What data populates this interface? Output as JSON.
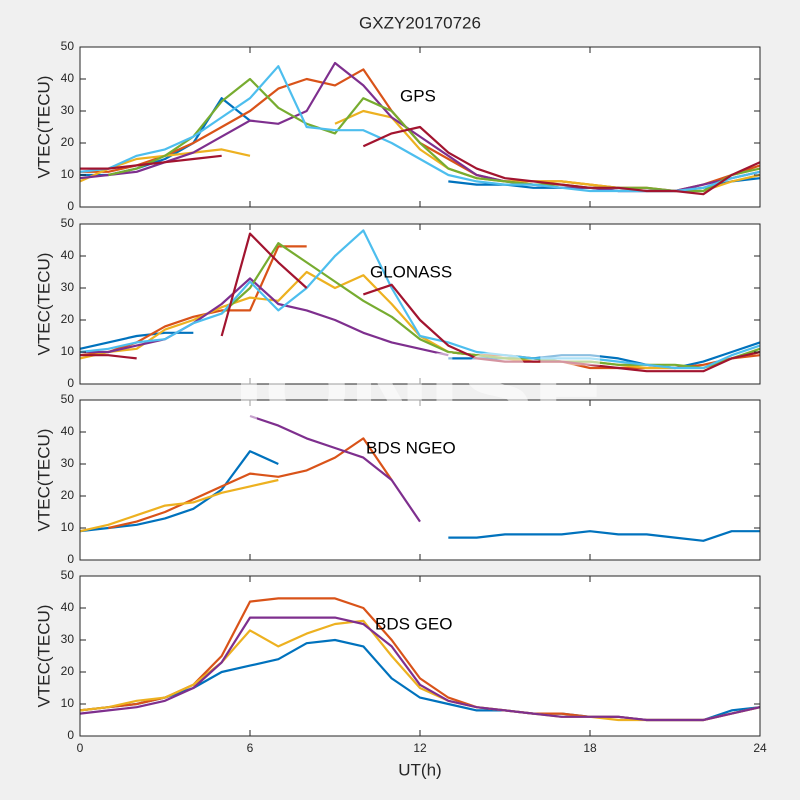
{
  "watermark": "IONISE",
  "chart_data": [
    {
      "type": "line",
      "title": "GXZY20170726",
      "annotation": "GPS",
      "ylabel": "VTEC(TECU)",
      "xlim": [
        0,
        24
      ],
      "xticks": [
        0,
        6,
        12,
        18,
        24
      ],
      "ylim": [
        0,
        50
      ],
      "yticks": [
        0,
        10,
        20,
        30,
        40,
        50
      ],
      "x": [
        0,
        1,
        2,
        3,
        4,
        5,
        6,
        7,
        8,
        9,
        10,
        11,
        12,
        13,
        14,
        15,
        16,
        17,
        18,
        19,
        20,
        21,
        22,
        23,
        24
      ],
      "series": [
        {
          "color": "#0072bd",
          "values": [
            10,
            10,
            12,
            15,
            20,
            34,
            27,
            null,
            null,
            null,
            null,
            null,
            null,
            8,
            7,
            7,
            6,
            6,
            6,
            5,
            5,
            5,
            6,
            8,
            9
          ]
        },
        {
          "color": "#d95319",
          "values": [
            11,
            11,
            13,
            16,
            20,
            25,
            30,
            37,
            40,
            38,
            43,
            30,
            20,
            15,
            10,
            8,
            8,
            8,
            7,
            6,
            6,
            5,
            7,
            10,
            13
          ]
        },
        {
          "color": "#edb120",
          "values": [
            8,
            12,
            15,
            16,
            17,
            18,
            16,
            null,
            null,
            26,
            30,
            28,
            18,
            12,
            9,
            8,
            8,
            8,
            7,
            6,
            5,
            5,
            5,
            8,
            10
          ]
        },
        {
          "color": "#7e2f8e",
          "values": [
            9,
            10,
            11,
            14,
            17,
            22,
            27,
            26,
            30,
            45,
            38,
            28,
            22,
            16,
            10,
            8,
            7,
            6,
            6,
            5,
            5,
            5,
            7,
            9,
            11
          ]
        },
        {
          "color": "#77ac30",
          "values": [
            null,
            10,
            12,
            16,
            22,
            33,
            40,
            31,
            26,
            23,
            34,
            30,
            20,
            12,
            9,
            8,
            7,
            7,
            6,
            6,
            6,
            5,
            5,
            10,
            12
          ]
        },
        {
          "color": "#4dbeee",
          "values": [
            11,
            12,
            16,
            18,
            22,
            28,
            34,
            44,
            25,
            24,
            24,
            20,
            15,
            10,
            8,
            7,
            7,
            6,
            5,
            5,
            5,
            5,
            6,
            9,
            11
          ]
        },
        {
          "color": "#a2142f",
          "values": [
            12,
            12,
            13,
            14,
            15,
            16,
            null,
            null,
            null,
            null,
            19,
            23,
            25,
            17,
            12,
            9,
            8,
            7,
            6,
            6,
            5,
            5,
            4,
            10,
            14
          ]
        }
      ]
    },
    {
      "type": "line",
      "annotation": "GLONASS",
      "ylabel": "VTEC(TECU)",
      "xlim": [
        0,
        24
      ],
      "xticks": [
        0,
        6,
        12,
        18,
        24
      ],
      "ylim": [
        0,
        50
      ],
      "yticks": [
        0,
        10,
        20,
        30,
        40,
        50
      ],
      "x": [
        0,
        1,
        2,
        3,
        4,
        5,
        6,
        7,
        8,
        9,
        10,
        11,
        12,
        13,
        14,
        15,
        16,
        17,
        18,
        19,
        20,
        21,
        22,
        23,
        24
      ],
      "series": [
        {
          "color": "#0072bd",
          "values": [
            11,
            13,
            15,
            16,
            16,
            null,
            null,
            null,
            null,
            null,
            null,
            null,
            null,
            8,
            8,
            8,
            8,
            9,
            9,
            8,
            6,
            5,
            7,
            10,
            13
          ]
        },
        {
          "color": "#d95319",
          "values": [
            9,
            10,
            13,
            18,
            21,
            23,
            23,
            43,
            43,
            null,
            null,
            null,
            null,
            10,
            9,
            9,
            8,
            7,
            5,
            5,
            5,
            5,
            6,
            8,
            9
          ]
        },
        {
          "color": "#edb120",
          "values": [
            8,
            10,
            11,
            17,
            20,
            24,
            27,
            26,
            35,
            30,
            34,
            25,
            15,
            10,
            9,
            8,
            7,
            7,
            7,
            6,
            5,
            5,
            5,
            8,
            10
          ]
        },
        {
          "color": "#7e2f8e",
          "values": [
            10,
            10,
            12,
            14,
            19,
            25,
            33,
            25,
            23,
            20,
            16,
            13,
            11,
            9,
            null,
            null,
            null,
            null,
            null,
            null,
            null,
            null,
            null,
            null,
            null
          ]
        },
        {
          "color": "#77ac30",
          "values": [
            null,
            null,
            null,
            null,
            null,
            22,
            30,
            44,
            38,
            32,
            26,
            21,
            14,
            10,
            9,
            8,
            8,
            7,
            7,
            6,
            6,
            6,
            5,
            8,
            11
          ]
        },
        {
          "color": "#4dbeee",
          "values": [
            10,
            11,
            13,
            14,
            19,
            22,
            32,
            23,
            30,
            40,
            48,
            30,
            15,
            13,
            10,
            9,
            8,
            8,
            8,
            7,
            6,
            5,
            5,
            9,
            12
          ]
        },
        {
          "color": "#a2142f",
          "values": [
            9,
            9,
            8,
            null,
            null,
            15,
            47,
            38,
            30,
            null,
            28,
            31,
            20,
            12,
            8,
            7,
            7,
            7,
            6,
            5,
            4,
            4,
            4,
            8,
            10
          ]
        }
      ]
    },
    {
      "type": "line",
      "annotation": "BDS NGEO",
      "ylabel": "VTEC(TECU)",
      "xlim": [
        0,
        24
      ],
      "xticks": [
        0,
        6,
        12,
        18,
        24
      ],
      "ylim": [
        0,
        50
      ],
      "yticks": [
        0,
        10,
        20,
        30,
        40,
        50
      ],
      "x": [
        0,
        1,
        2,
        3,
        4,
        5,
        6,
        7,
        8,
        9,
        10,
        11,
        12,
        13,
        14,
        15,
        16,
        17,
        18,
        19,
        20,
        21,
        22,
        23,
        24
      ],
      "series": [
        {
          "color": "#0072bd",
          "values": [
            9,
            10,
            11,
            13,
            16,
            22,
            34,
            30,
            null,
            null,
            null,
            null,
            null,
            7,
            7,
            8,
            8,
            8,
            9,
            8,
            8,
            7,
            6,
            9,
            9
          ]
        },
        {
          "color": "#d95319",
          "values": [
            null,
            10,
            12,
            15,
            19,
            23,
            27,
            26,
            28,
            32,
            38,
            25,
            null,
            null,
            null,
            null,
            null,
            null,
            null,
            null,
            null,
            null,
            null,
            null,
            null
          ]
        },
        {
          "color": "#edb120",
          "values": [
            9,
            11,
            14,
            17,
            18,
            21,
            23,
            25,
            null,
            null,
            null,
            null,
            null,
            null,
            null,
            null,
            null,
            null,
            null,
            null,
            null,
            null,
            null,
            null,
            null
          ]
        },
        {
          "color": "#7e2f8e",
          "values": [
            null,
            null,
            null,
            null,
            null,
            null,
            45,
            42,
            38,
            35,
            32,
            25,
            12,
            null,
            null,
            null,
            null,
            null,
            null,
            null,
            null,
            null,
            null,
            null,
            null
          ]
        }
      ]
    },
    {
      "type": "line",
      "annotation": "BDS GEO",
      "ylabel": "VTEC(TECU)",
      "xlabel": "UT(h)",
      "xlim": [
        0,
        24
      ],
      "xticks": [
        0,
        6,
        12,
        18,
        24
      ],
      "ylim": [
        0,
        50
      ],
      "yticks": [
        0,
        10,
        20,
        30,
        40,
        50
      ],
      "x": [
        0,
        1,
        2,
        3,
        4,
        5,
        6,
        7,
        8,
        9,
        10,
        11,
        12,
        13,
        14,
        15,
        16,
        17,
        18,
        19,
        20,
        21,
        22,
        23,
        24
      ],
      "series": [
        {
          "color": "#0072bd",
          "values": [
            8,
            9,
            10,
            12,
            15,
            20,
            22,
            24,
            29,
            30,
            28,
            18,
            12,
            10,
            8,
            8,
            7,
            7,
            6,
            6,
            5,
            5,
            5,
            8,
            9
          ]
        },
        {
          "color": "#d95319",
          "values": [
            8,
            9,
            10,
            12,
            16,
            25,
            42,
            43,
            43,
            43,
            40,
            30,
            18,
            12,
            9,
            8,
            7,
            7,
            6,
            6,
            5,
            5,
            5,
            7,
            9
          ]
        },
        {
          "color": "#edb120",
          "values": [
            8,
            9,
            11,
            12,
            16,
            23,
            33,
            28,
            32,
            35,
            36,
            25,
            15,
            11,
            9,
            8,
            7,
            6,
            6,
            5,
            5,
            5,
            5,
            7,
            9
          ]
        },
        {
          "color": "#7e2f8e",
          "values": [
            7,
            8,
            9,
            11,
            15,
            23,
            37,
            37,
            37,
            37,
            35,
            28,
            16,
            11,
            9,
            8,
            7,
            6,
            6,
            6,
            5,
            5,
            5,
            7,
            9
          ]
        }
      ]
    }
  ]
}
